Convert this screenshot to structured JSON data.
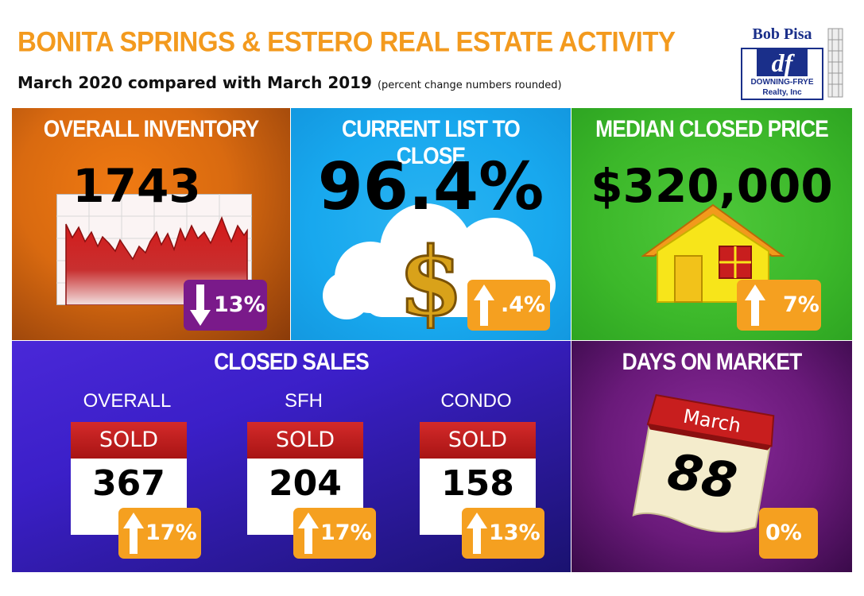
{
  "header": {
    "title": "BONITA SPRINGS & ESTERO REAL ESTATE ACTIVITY",
    "subtitle_main": "March 2020 compared with March 2019",
    "subtitle_note": "(percent change numbers rounded)"
  },
  "logo": {
    "name": "Bob Pisa",
    "mark": "df",
    "line1": "DOWNING-FRYE",
    "line2": "Realty, Inc"
  },
  "inventory": {
    "title": "OVERALL INVENTORY",
    "value": "1743",
    "change": "13%",
    "direction": "down",
    "icon": "line-chart-icon"
  },
  "list_to_close": {
    "title": "CURRENT LIST TO CLOSE",
    "value": "96.4%",
    "change": ".4%",
    "direction": "up",
    "icon": "dollar-cloud-icon"
  },
  "median_price": {
    "title": "MEDIAN CLOSED PRICE",
    "value": "$320,000",
    "change": "7%",
    "direction": "up",
    "icon": "house-icon"
  },
  "closed_sales": {
    "title": "CLOSED SALES",
    "sold_label": "SOLD",
    "items": [
      {
        "label": "OVERALL",
        "value": "367",
        "change": "17%",
        "direction": "up"
      },
      {
        "label": "SFH",
        "value": "204",
        "change": "17%",
        "direction": "up"
      },
      {
        "label": "CONDO",
        "value": "158",
        "change": "13%",
        "direction": "up"
      }
    ]
  },
  "days_on_market": {
    "title": "DAYS ON MARKET",
    "month": "March",
    "value": "88",
    "change": "0%",
    "icon": "calendar-icon"
  },
  "colors": {
    "title_orange": "#f39a1e",
    "badge_orange": "#f5a020",
    "badge_purple": "#7a1a8a",
    "sold_red": "#c01e1e",
    "logo_blue": "#1a2f8a"
  }
}
